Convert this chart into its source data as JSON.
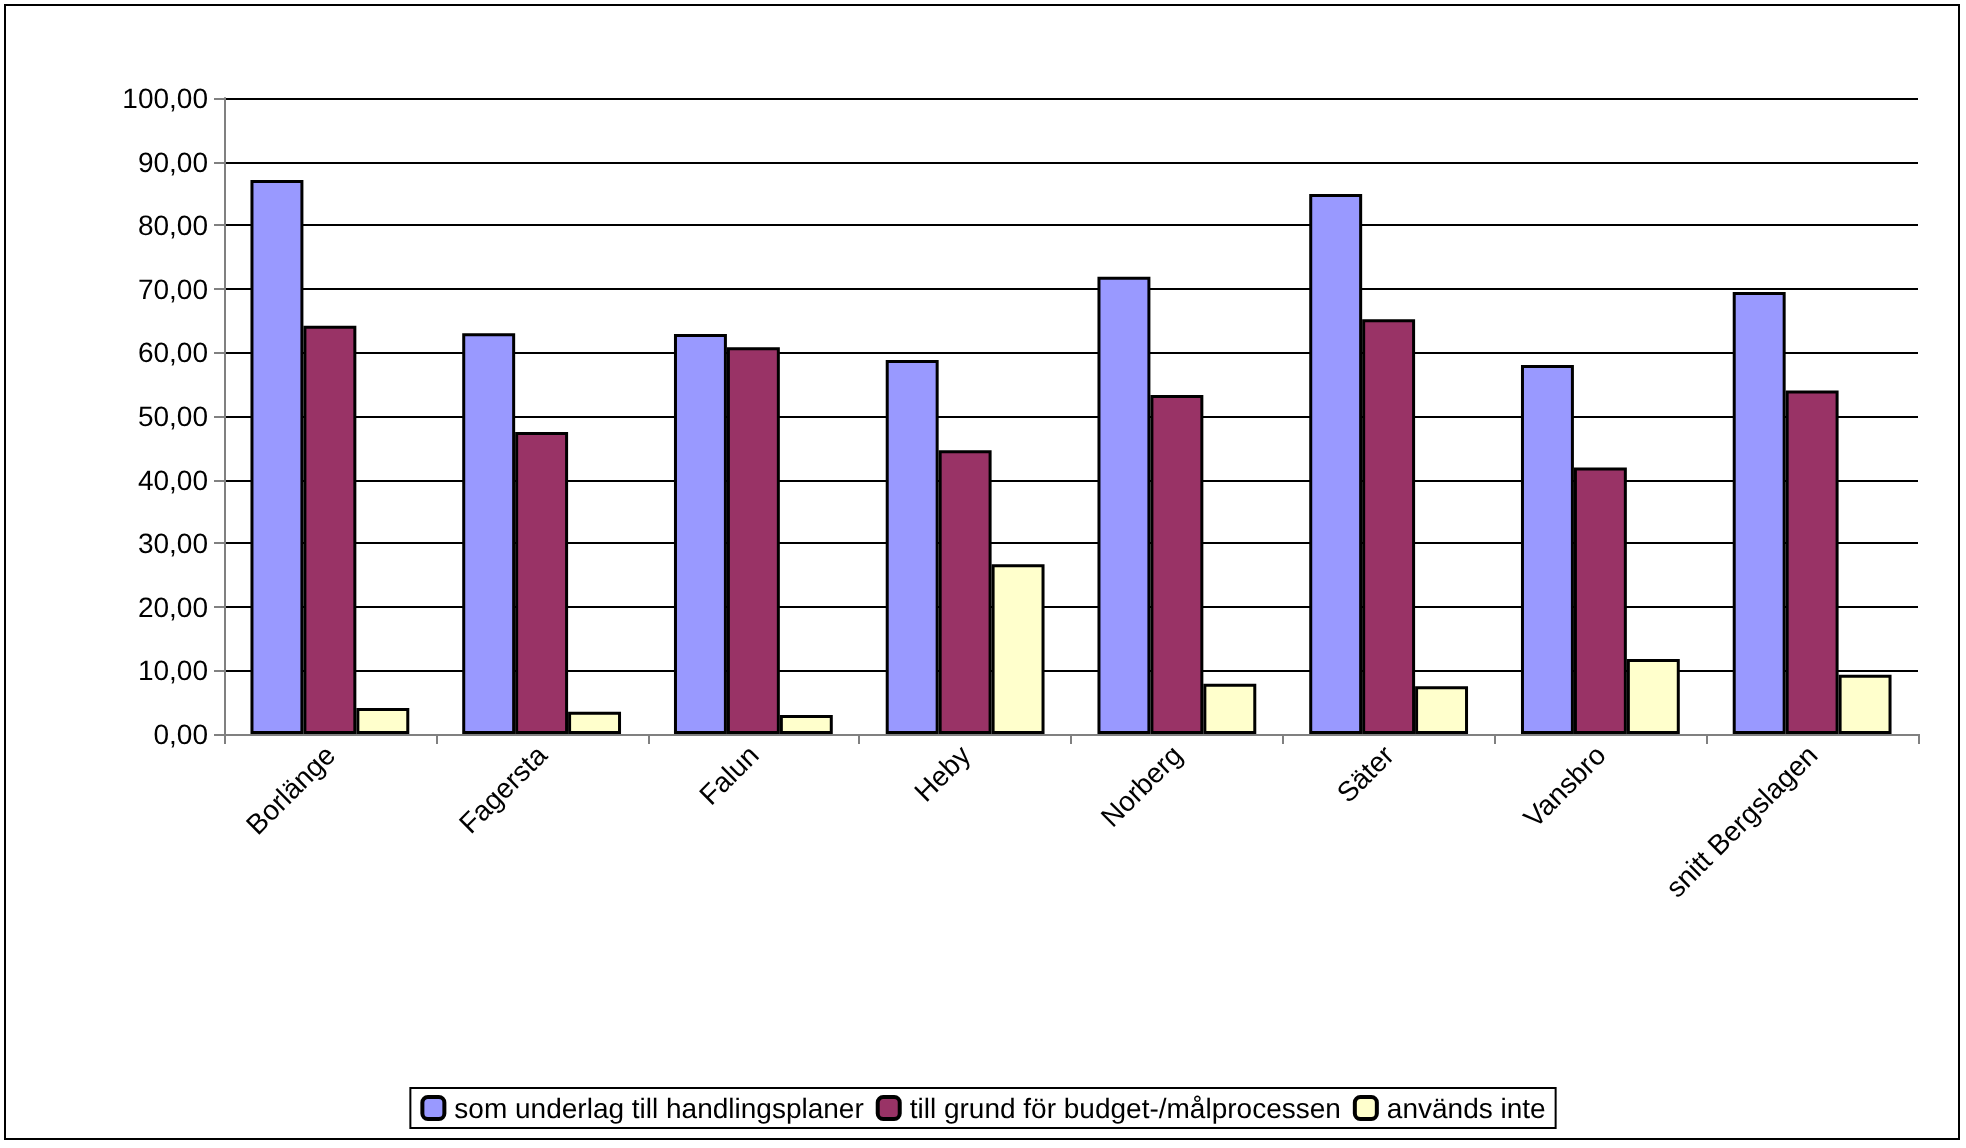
{
  "chart_data": {
    "type": "bar",
    "categories": [
      "Borlänge",
      "Fagersta",
      "Falun",
      "Heby",
      "Norberg",
      "Säter",
      "Vansbro",
      "snitt Bergslagen"
    ],
    "series": [
      {
        "name": "som underlag till handlingsplaner",
        "color": "#9999ff",
        "values": [
          87.1,
          63.0,
          62.9,
          58.8,
          71.9,
          84.9,
          58.0,
          69.5
        ]
      },
      {
        "name": "till grund för budget-/målprocessen",
        "color": "#993366",
        "values": [
          64.2,
          47.5,
          60.8,
          44.6,
          53.3,
          65.2,
          41.9,
          54.0
        ]
      },
      {
        "name": "används inte",
        "color": "#ffffcc",
        "values": [
          4.1,
          3.5,
          3.0,
          26.7,
          7.9,
          7.5,
          11.8,
          9.3
        ]
      }
    ],
    "ylim": [
      0,
      100
    ],
    "yticks": [
      {
        "value": 0,
        "label": "0,00"
      },
      {
        "value": 10,
        "label": "10,00"
      },
      {
        "value": 20,
        "label": "20,00"
      },
      {
        "value": 30,
        "label": "30,00"
      },
      {
        "value": 40,
        "label": "40,00"
      },
      {
        "value": 50,
        "label": "50,00"
      },
      {
        "value": 60,
        "label": "60,00"
      },
      {
        "value": 70,
        "label": "70,00"
      },
      {
        "value": 80,
        "label": "80,00"
      },
      {
        "value": 90,
        "label": "90,00"
      },
      {
        "value": 100,
        "label": "100,00"
      }
    ],
    "grid": "y",
    "legend": "bottom"
  }
}
